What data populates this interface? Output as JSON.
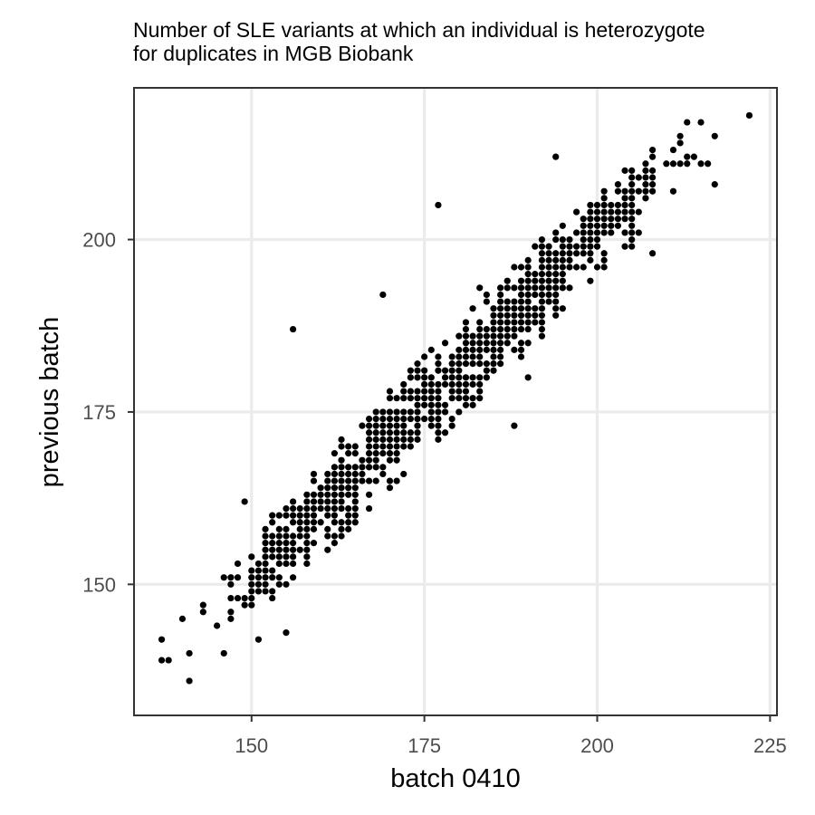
{
  "chart_data": {
    "type": "scatter",
    "title_lines": [
      "Number of SLE variants at which an individual is heterozygote",
      "for duplicates in MGB Biobank"
    ],
    "xlabel": "batch 0410",
    "ylabel": "previous batch",
    "xlim": [
      133,
      226
    ],
    "ylim": [
      131,
      222
    ],
    "x_ticks": [
      150,
      175,
      200,
      225
    ],
    "y_ticks": [
      150,
      175,
      200
    ],
    "grid": true,
    "point_color": "#000000",
    "outliers": [
      [
        222,
        218
      ],
      [
        213,
        217
      ],
      [
        215,
        217
      ],
      [
        217,
        215
      ],
      [
        194,
        212
      ],
      [
        213,
        212
      ],
      [
        214,
        212
      ],
      [
        213,
        211
      ],
      [
        215,
        211
      ],
      [
        216,
        211
      ],
      [
        217,
        208
      ],
      [
        211,
        207
      ],
      [
        177,
        205
      ],
      [
        206,
        201
      ],
      [
        205,
        199
      ],
      [
        208,
        198
      ],
      [
        183,
        193
      ],
      [
        169,
        192
      ],
      [
        156,
        187
      ],
      [
        188,
        184
      ],
      [
        190,
        180
      ],
      [
        188,
        173
      ],
      [
        149,
        162
      ],
      [
        143,
        147
      ],
      [
        143,
        146
      ],
      [
        140,
        145
      ],
      [
        145,
        144
      ],
      [
        155,
        143
      ],
      [
        151,
        142
      ],
      [
        146,
        140
      ],
      [
        141,
        140
      ],
      [
        137,
        142
      ],
      [
        137,
        139
      ],
      [
        138,
        139
      ],
      [
        141,
        136
      ]
    ]
  }
}
